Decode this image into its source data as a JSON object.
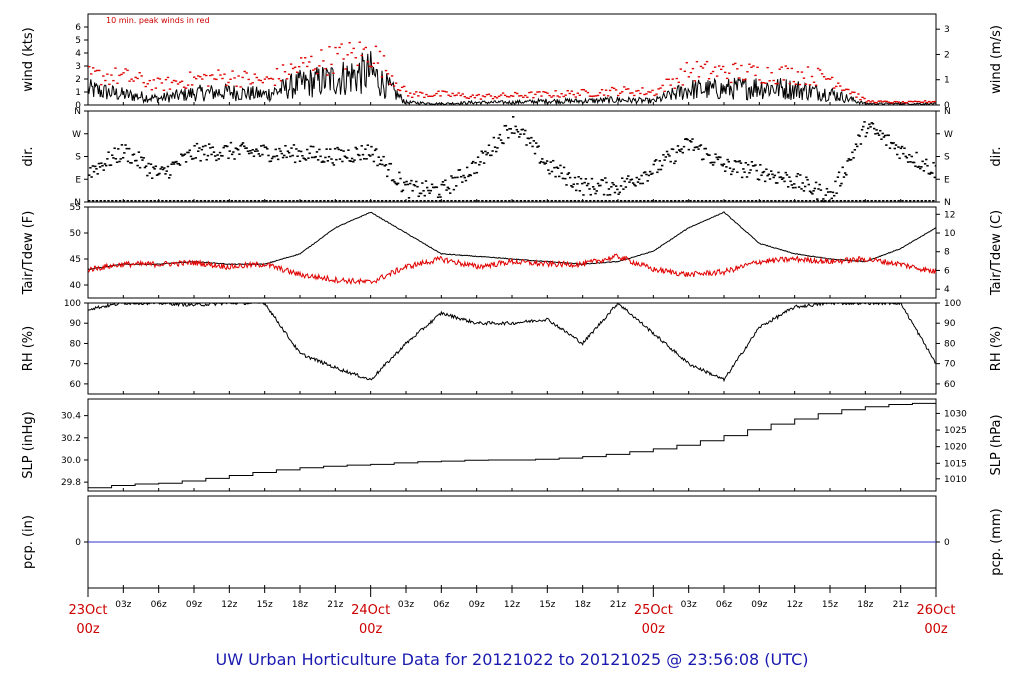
{
  "footer_title": "UW Urban Horticulture Data for 20121022  to  20121025 @ 23:56:08  (UTC)",
  "colors": {
    "black": "#000000",
    "red": "#e00000",
    "blue": "#3030d0",
    "footer": "#1a1ab0"
  },
  "time_axis": {
    "minor_ticks": [
      "03z",
      "06z",
      "09z",
      "12z",
      "15z",
      "18z",
      "21z",
      "03z",
      "06z",
      "09z",
      "12z",
      "15z",
      "18z",
      "21z",
      "03z",
      "06z",
      "09z",
      "12z",
      "15z",
      "18z",
      "21z"
    ],
    "day_labels": [
      {
        "day": "23Oct",
        "hour": "00z"
      },
      {
        "day": "24Oct",
        "hour": "00z"
      },
      {
        "day": "25Oct",
        "hour": "00z"
      },
      {
        "day": "26Oct",
        "hour": "00z"
      }
    ]
  },
  "chart_data": [
    {
      "type": "line",
      "ylabel": "wind (kts)",
      "ylabel_right": "wind (m/s)",
      "note": "10 min. peak winds in red",
      "ylim": [
        0,
        7
      ],
      "yticks": [
        "0",
        "1",
        "2",
        "3",
        "4",
        "5",
        "6"
      ],
      "yticks_values": [
        0,
        1,
        2,
        3,
        4,
        5,
        6
      ],
      "yticks_right": [
        "0",
        "1",
        "2",
        "3"
      ],
      "yticks_right_values": [
        0,
        1.944,
        3.888,
        5.832
      ],
      "series": [
        {
          "color": "black",
          "x": [
            0,
            3,
            6,
            9,
            12,
            15,
            18,
            21,
            24,
            27,
            30,
            33,
            36,
            39,
            42,
            45,
            48,
            51,
            54,
            57,
            60,
            63,
            66,
            69,
            72
          ],
          "values": [
            1.2,
            0.8,
            0.5,
            0.9,
            1.0,
            0.8,
            1.6,
            2.0,
            2.5,
            0.2,
            0.1,
            0.2,
            0.2,
            0.3,
            0.3,
            0.4,
            0.3,
            1.2,
            1.2,
            1.4,
            1.2,
            0.9,
            0.1,
            0.1,
            0.1
          ]
        },
        {
          "color": "red",
          "x": [
            0,
            3,
            6,
            9,
            12,
            15,
            18,
            21,
            24,
            27,
            30,
            33,
            36,
            39,
            42,
            45,
            48,
            51,
            54,
            57,
            60,
            63,
            66,
            69,
            72
          ],
          "values": [
            2.5,
            2.4,
            1.7,
            2.2,
            2.4,
            2.0,
            3.3,
            4.0,
            4.5,
            0.9,
            0.9,
            0.7,
            0.8,
            0.9,
            1.0,
            1.2,
            1.1,
            2.9,
            2.8,
            2.7,
            2.6,
            2.3,
            0.3,
            0.2,
            0.3
          ]
        }
      ]
    },
    {
      "type": "scatter",
      "ylabel": "dir.",
      "ylabel_right": "dir.",
      "ylim": [
        0,
        360
      ],
      "yticks": [
        "N",
        "E",
        "S",
        "W",
        "N"
      ],
      "yticks_values": [
        0,
        90,
        180,
        270,
        360
      ],
      "series": [
        {
          "color": "black",
          "x": [
            0,
            3,
            6,
            9,
            12,
            15,
            18,
            21,
            24,
            27,
            30,
            33,
            36,
            39,
            42,
            45,
            48,
            51,
            54,
            57,
            60,
            63,
            66,
            69,
            72
          ],
          "values": [
            120,
            200,
            105,
            195,
            200,
            195,
            190,
            180,
            200,
            50,
            45,
            150,
            310,
            140,
            60,
            60,
            130,
            230,
            140,
            120,
            80,
            20,
            300,
            200,
            120
          ]
        }
      ]
    },
    {
      "type": "line",
      "ylabel": "Tair/Tdew (F)",
      "ylabel_right": "Tair/Tdew (C)",
      "ylim": [
        37.5,
        55
      ],
      "yticks": [
        "40",
        "45",
        "50",
        "55"
      ],
      "yticks_values": [
        40,
        45,
        50,
        55
      ],
      "yticks_right": [
        "4",
        "6",
        "8",
        "10",
        "12"
      ],
      "yticks_right_values": [
        39.2,
        42.8,
        46.4,
        50.0,
        53.6
      ],
      "series": [
        {
          "name": "Tair",
          "color": "black",
          "x": [
            0,
            3,
            6,
            9,
            12,
            15,
            18,
            21,
            24,
            27,
            30,
            33,
            36,
            39,
            42,
            45,
            48,
            51,
            54,
            57,
            60,
            63,
            66,
            69,
            72
          ],
          "values": [
            43,
            44,
            44,
            44.5,
            44,
            44,
            46,
            51,
            54,
            50,
            46,
            45.5,
            45,
            44.5,
            44,
            44.5,
            46.5,
            51,
            54,
            48,
            46,
            45,
            44.5,
            47,
            51
          ]
        },
        {
          "name": "Tdew",
          "color": "red",
          "x": [
            0,
            3,
            6,
            9,
            12,
            15,
            18,
            21,
            24,
            27,
            30,
            33,
            36,
            39,
            42,
            45,
            48,
            51,
            54,
            57,
            60,
            63,
            66,
            69,
            72
          ],
          "values": [
            43,
            44,
            44,
            44.3,
            43.5,
            44,
            42,
            41,
            40.5,
            43.5,
            45,
            43.5,
            44.5,
            44,
            44,
            45.5,
            43,
            42,
            42.5,
            44.5,
            45,
            44.5,
            45,
            44,
            42.5
          ]
        }
      ]
    },
    {
      "type": "line",
      "ylabel": "RH (%)",
      "ylabel_right": "RH (%)",
      "ylim": [
        55,
        100
      ],
      "yticks": [
        "60",
        "70",
        "80",
        "90",
        "100"
      ],
      "yticks_values": [
        60,
        70,
        80,
        90,
        100
      ],
      "series": [
        {
          "color": "black",
          "x": [
            0,
            3,
            6,
            9,
            12,
            15,
            18,
            21,
            24,
            27,
            30,
            33,
            36,
            39,
            42,
            45,
            48,
            51,
            54,
            57,
            60,
            63,
            66,
            69,
            72
          ],
          "values": [
            97,
            100,
            100,
            99,
            100,
            100,
            75,
            68,
            62,
            80,
            95,
            90,
            90,
            92,
            80,
            100,
            85,
            70,
            62,
            88,
            98,
            100,
            100,
            100,
            70
          ]
        }
      ]
    },
    {
      "type": "line",
      "ylabel": "SLP (inHg)",
      "ylabel_right": "SLP (hPa)",
      "ylim": [
        29.72,
        30.55
      ],
      "yticks": [
        "29.8",
        "30.0",
        "30.2",
        "30.4"
      ],
      "yticks_values": [
        29.8,
        30.0,
        30.2,
        30.4
      ],
      "yticks_right": [
        "1010",
        "1015",
        "1020",
        "1025",
        "1030",
        "1035"
      ],
      "yticks_right_values": [
        29.83,
        29.97,
        30.12,
        30.27,
        30.42,
        30.56
      ],
      "series": [
        {
          "color": "black",
          "x": [
            0,
            3,
            6,
            9,
            12,
            15,
            18,
            21,
            24,
            27,
            30,
            33,
            36,
            39,
            42,
            45,
            48,
            51,
            54,
            57,
            60,
            63,
            66,
            69,
            72
          ],
          "values": [
            29.75,
            29.78,
            29.79,
            29.82,
            29.86,
            29.9,
            29.93,
            29.95,
            29.96,
            29.98,
            29.99,
            30.0,
            30.0,
            30.01,
            30.03,
            30.06,
            30.1,
            30.15,
            30.22,
            30.3,
            30.37,
            30.44,
            30.48,
            30.51,
            30.51
          ]
        }
      ]
    },
    {
      "type": "line",
      "ylabel": "pcp. (in)",
      "ylabel_right": "pcp. (mm)",
      "ylim": [
        -1,
        1
      ],
      "yticks": [
        "0"
      ],
      "yticks_values": [
        0
      ],
      "yticks_right": [
        "0"
      ],
      "yticks_right_values": [
        0
      ],
      "series": [
        {
          "color": "blue",
          "x": [
            0,
            72
          ],
          "values": [
            0,
            0
          ]
        }
      ]
    }
  ]
}
